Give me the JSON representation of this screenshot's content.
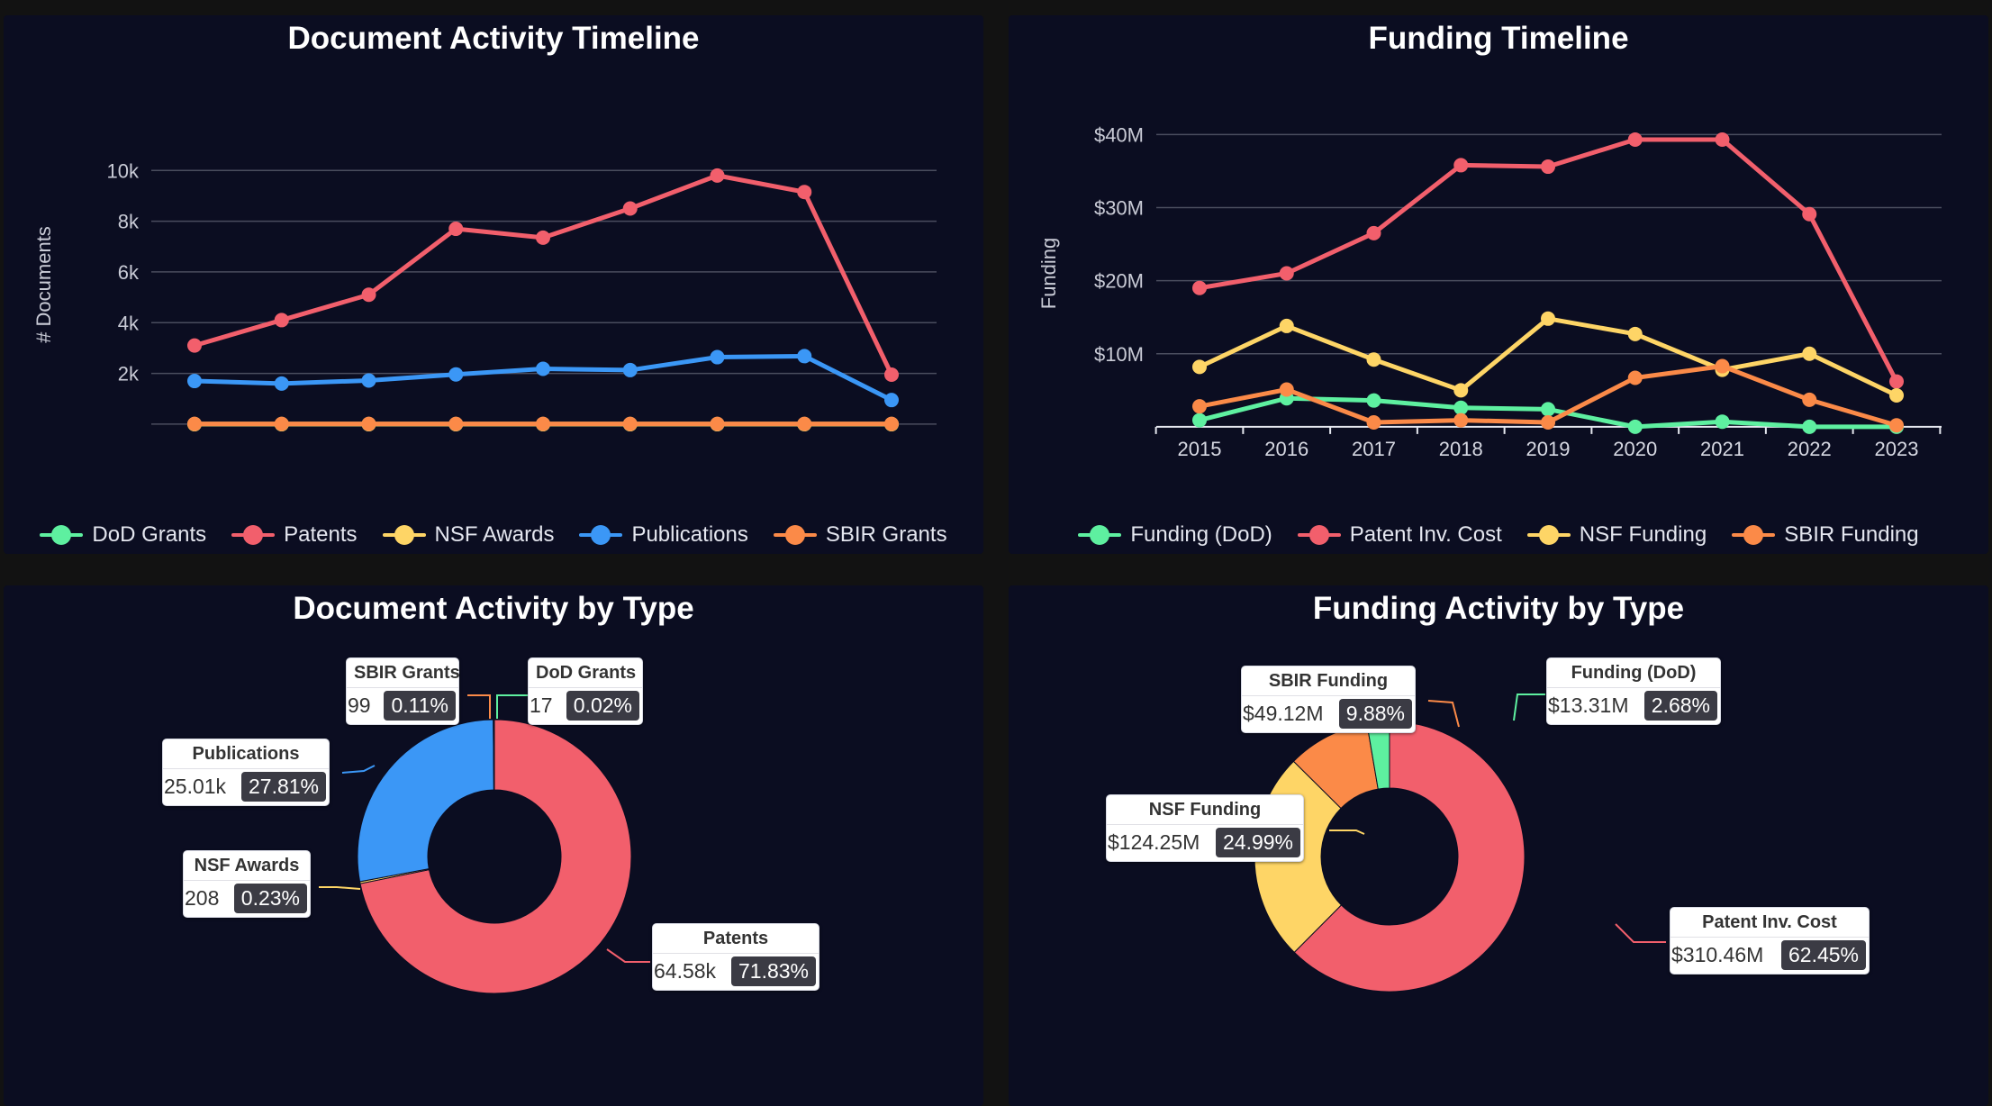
{
  "colors": {
    "dod": "#5ef0a0",
    "patents": "#f25f6c",
    "nsf": "#fed566",
    "publications": "#3b97f6",
    "sbir": "#fb8a48"
  },
  "chart_data": [
    {
      "type": "line",
      "title": "Document Activity Timeline",
      "ylabel": "# Documents",
      "xlabel": "",
      "x": [
        "2015",
        "2016",
        "2017",
        "2018",
        "2019",
        "2020",
        "2021",
        "2022",
        "2023"
      ],
      "show_x_ticks": false,
      "ylim": [
        -500,
        11500
      ],
      "yticks": [
        {
          "v": 2000,
          "label": "2k"
        },
        {
          "v": 4000,
          "label": "4k"
        },
        {
          "v": 6000,
          "label": "6k"
        },
        {
          "v": 8000,
          "label": "8k"
        },
        {
          "v": 10000,
          "label": "10k"
        }
      ],
      "series": [
        {
          "name": "DoD Grants",
          "color": "#5ef0a0",
          "values": [
            0,
            0,
            0,
            0,
            0,
            0,
            0,
            0,
            0
          ]
        },
        {
          "name": "Patents",
          "color": "#f25f6c",
          "values": [
            3100,
            4100,
            5100,
            7700,
            7350,
            8500,
            9800,
            9150,
            1950
          ]
        },
        {
          "name": "NSF Awards",
          "color": "#fed566",
          "values": [
            0,
            0,
            0,
            0,
            0,
            0,
            0,
            0,
            0
          ]
        },
        {
          "name": "Publications",
          "color": "#3b97f6",
          "values": [
            1700,
            1600,
            1720,
            1960,
            2180,
            2130,
            2640,
            2680,
            950
          ]
        },
        {
          "name": "SBIR Grants",
          "color": "#fb8a48",
          "values": [
            10,
            10,
            10,
            10,
            10,
            10,
            10,
            10,
            10
          ]
        }
      ]
    },
    {
      "type": "line",
      "title": "Funding Timeline",
      "ylabel": "Funding",
      "xlabel": "",
      "x": [
        "2015",
        "2016",
        "2017",
        "2018",
        "2019",
        "2020",
        "2021",
        "2022",
        "2023"
      ],
      "show_x_ticks": true,
      "ylim": [
        -1000000,
        43000000
      ],
      "yticks": [
        {
          "v": 10000000,
          "label": "$10M"
        },
        {
          "v": 20000000,
          "label": "$20M"
        },
        {
          "v": 30000000,
          "label": "$30M"
        },
        {
          "v": 40000000,
          "label": "$40M"
        }
      ],
      "series": [
        {
          "name": "Funding (DoD)",
          "color": "#5ef0a0",
          "values": [
            900000,
            3900000,
            3600000,
            2600000,
            2400000,
            0,
            700000,
            0,
            0
          ]
        },
        {
          "name": "Patent Inv. Cost",
          "color": "#f25f6c",
          "values": [
            19000000,
            21000000,
            26500000,
            35800000,
            35600000,
            39300000,
            39300000,
            29100000,
            6200000
          ]
        },
        {
          "name": "NSF Funding",
          "color": "#fed566",
          "values": [
            8200000,
            13800000,
            9200000,
            5000000,
            14800000,
            12700000,
            7800000,
            10000000,
            4300000
          ]
        },
        {
          "name": "SBIR Funding",
          "color": "#fb8a48",
          "values": [
            2800000,
            5100000,
            600000,
            900000,
            600000,
            6700000,
            8300000,
            3700000,
            200000
          ]
        }
      ]
    },
    {
      "type": "pie",
      "title": "Document Activity by Type",
      "slices": [
        {
          "name": "Patents",
          "value": "64.58k",
          "percent": 71.83,
          "percent_label": "71.83%",
          "color": "#f25f6c"
        },
        {
          "name": "NSF Awards",
          "value": "208",
          "percent": 0.23,
          "percent_label": "0.23%",
          "color": "#fed566"
        },
        {
          "name": "Publications",
          "value": "25.01k",
          "percent": 27.81,
          "percent_label": "27.81%",
          "color": "#3b97f6"
        },
        {
          "name": "SBIR Grants",
          "value": "99",
          "percent": 0.11,
          "percent_label": "0.11%",
          "color": "#fb8a48"
        },
        {
          "name": "DoD Grants",
          "value": "17",
          "percent": 0.02,
          "percent_label": "0.02%",
          "color": "#5ef0a0"
        }
      ]
    },
    {
      "type": "pie",
      "title": "Funding Activity by Type",
      "slices": [
        {
          "name": "Patent Inv. Cost",
          "value": "$310.46M",
          "percent": 62.45,
          "percent_label": "62.45%",
          "color": "#f25f6c"
        },
        {
          "name": "NSF Funding",
          "value": "$124.25M",
          "percent": 24.99,
          "percent_label": "24.99%",
          "color": "#fed566"
        },
        {
          "name": "SBIR Funding",
          "value": "$49.12M",
          "percent": 9.88,
          "percent_label": "9.88%",
          "color": "#fb8a48"
        },
        {
          "name": "Funding (DoD)",
          "value": "$13.31M",
          "percent": 2.68,
          "percent_label": "2.68%",
          "color": "#5ef0a0"
        }
      ]
    }
  ]
}
